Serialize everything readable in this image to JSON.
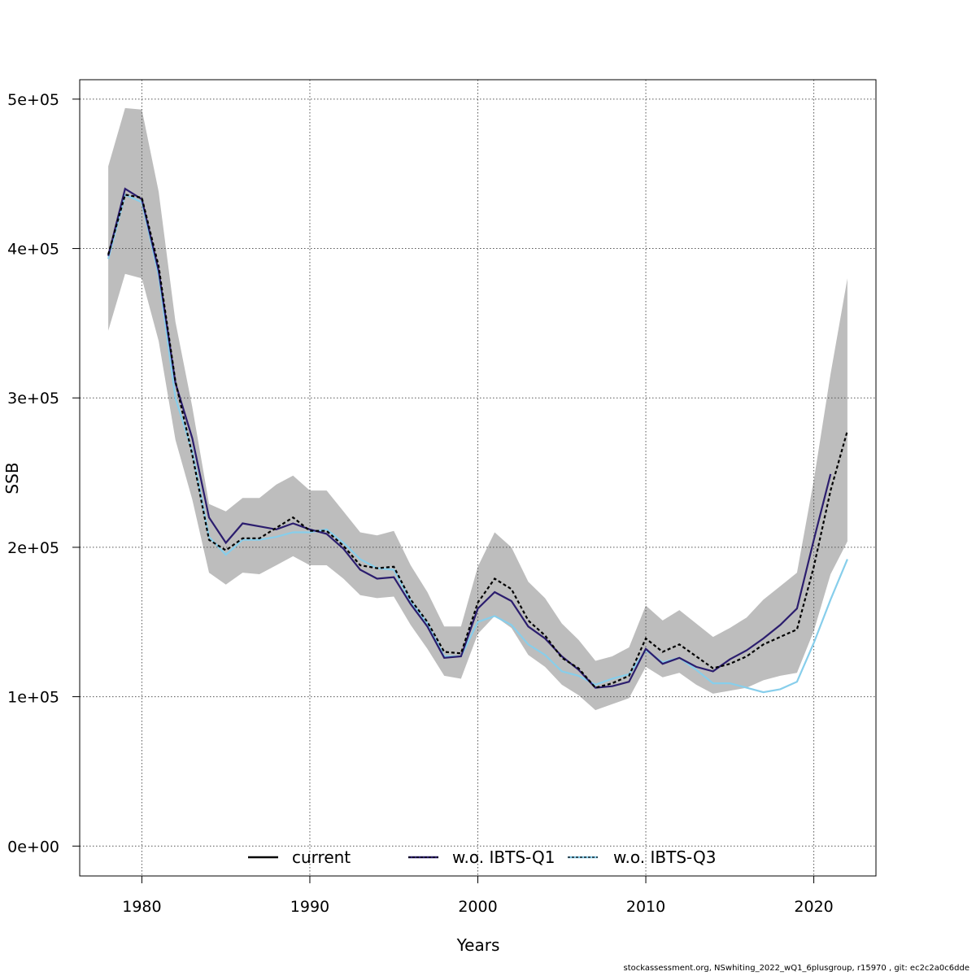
{
  "chart_data": {
    "type": "line",
    "title": "",
    "xlabel": "Years",
    "ylabel": "SSB",
    "xlim": [
      1976.3,
      2023.7
    ],
    "ylim": [
      -20000,
      513000
    ],
    "x_ticks": [
      1980,
      1990,
      2000,
      2010,
      2020
    ],
    "x_tick_labels": [
      "1980",
      "1990",
      "2000",
      "2010",
      "2020"
    ],
    "y_ticks": [
      0,
      100000,
      200000,
      300000,
      400000,
      500000
    ],
    "y_tick_labels": [
      "0e+00",
      "1e+05",
      "2e+05",
      "3e+05",
      "4e+05",
      "5e+05"
    ],
    "grid": true,
    "legend_position": "bottom",
    "confidence_band": {
      "x": [
        1978,
        1979,
        1980,
        1981,
        1982,
        1983,
        1984,
        1985,
        1986,
        1987,
        1988,
        1989,
        1990,
        1991,
        1992,
        1993,
        1994,
        1995,
        1996,
        1997,
        1998,
        1999,
        2000,
        2001,
        2002,
        2003,
        2004,
        2005,
        2006,
        2007,
        2008,
        2009,
        2010,
        2011,
        2012,
        2013,
        2014,
        2015,
        2016,
        2017,
        2018,
        2019,
        2020,
        2021,
        2022
      ],
      "lower": [
        345000,
        383000,
        380000,
        338000,
        272000,
        232000,
        183000,
        175000,
        183000,
        182000,
        188000,
        194000,
        188000,
        188000,
        179000,
        168000,
        166000,
        167000,
        148000,
        132000,
        114000,
        112000,
        142000,
        154000,
        146000,
        128000,
        120000,
        108000,
        101000,
        91000,
        95000,
        99000,
        120000,
        113000,
        116000,
        108000,
        102000,
        104000,
        106000,
        111000,
        114000,
        116000,
        144000,
        182000,
        204000
      ],
      "upper": [
        455000,
        494000,
        493000,
        438000,
        351000,
        294000,
        229000,
        224000,
        233000,
        233000,
        242000,
        248000,
        238000,
        238000,
        224000,
        210000,
        208000,
        211000,
        188000,
        170000,
        147000,
        147000,
        187000,
        210000,
        200000,
        177000,
        166000,
        149000,
        138000,
        124000,
        127000,
        133000,
        161000,
        151000,
        158000,
        149000,
        140000,
        146000,
        153000,
        165000,
        174000,
        183000,
        245000,
        316000,
        380000
      ]
    },
    "series": [
      {
        "name": "current",
        "color": "#000000",
        "x": [
          1978,
          1979,
          1980,
          1981,
          1982,
          1983,
          1984,
          1985,
          1986,
          1987,
          1988,
          1989,
          1990,
          1991,
          1992,
          1993,
          1994,
          1995,
          1996,
          1997,
          1998,
          1999,
          2000,
          2001,
          2002,
          2003,
          2004,
          2005,
          2006,
          2007,
          2008,
          2009,
          2010,
          2011,
          2012,
          2013,
          2014,
          2015,
          2016,
          2017,
          2018,
          2019,
          2020,
          2021,
          2022
        ],
        "values": [
          396000,
          436000,
          434000,
          388000,
          311000,
          262000,
          205000,
          198000,
          206000,
          206000,
          213000,
          220000,
          211000,
          211000,
          201000,
          188000,
          186000,
          187000,
          165000,
          150000,
          130000,
          129000,
          163000,
          179000,
          172000,
          151000,
          141000,
          126000,
          119000,
          106000,
          109000,
          114000,
          139000,
          130000,
          135000,
          127000,
          119000,
          122000,
          127000,
          135000,
          140000,
          145000,
          187000,
          238000,
          278000
        ]
      },
      {
        "name": "w.o. IBTS-Q1",
        "color": "#2b1d6e",
        "x": [
          1978,
          1979,
          1980,
          1981,
          1982,
          1983,
          1984,
          1985,
          1986,
          1987,
          1988,
          1989,
          1990,
          1991,
          1992,
          1993,
          1994,
          1995,
          1996,
          1997,
          1998,
          1999,
          2000,
          2001,
          2002,
          2003,
          2004,
          2005,
          2006,
          2007,
          2008,
          2009,
          2010,
          2011,
          2012,
          2013,
          2014,
          2015,
          2016,
          2017,
          2018,
          2019,
          2020,
          2021
        ],
        "values": [
          395000,
          440000,
          433000,
          385000,
          310000,
          273000,
          220000,
          203000,
          216000,
          214000,
          212000,
          216000,
          212000,
          209000,
          199000,
          185000,
          179000,
          180000,
          162000,
          147000,
          126000,
          127000,
          159000,
          170000,
          164000,
          147000,
          139000,
          127000,
          118000,
          106000,
          107000,
          110000,
          132000,
          122000,
          126000,
          120000,
          117000,
          125000,
          131000,
          139000,
          148000,
          159000,
          205000,
          249000
        ]
      },
      {
        "name": "w.o. IBTS-Q3",
        "color": "#87ceeb",
        "x": [
          1978,
          1979,
          1980,
          1981,
          1982,
          1983,
          1984,
          1985,
          1986,
          1987,
          1988,
          1989,
          1990,
          1991,
          1992,
          1993,
          1994,
          1995,
          1996,
          1997,
          1998,
          1999,
          2000,
          2001,
          2002,
          2003,
          2004,
          2005,
          2006,
          2007,
          2008,
          2009,
          2010,
          2011,
          2012,
          2013,
          2014,
          2015,
          2016,
          2017,
          2018,
          2019,
          2020,
          2021,
          2022
        ],
        "values": [
          393000,
          436000,
          431000,
          382000,
          300000,
          264000,
          207000,
          195000,
          205000,
          205000,
          207000,
          210000,
          210000,
          212000,
          203000,
          192000,
          186000,
          185000,
          164000,
          149000,
          127000,
          127000,
          150000,
          154000,
          148000,
          135000,
          128000,
          117000,
          114000,
          108000,
          112000,
          115000,
          131000,
          123000,
          126000,
          118000,
          109000,
          109000,
          106000,
          103000,
          105000,
          110000,
          136000,
          165000,
          192000
        ]
      }
    ]
  },
  "footer_note": "stockassessment.org, NSwhiting_2022_wQ1_6plusgroup, r15970 , git: ec2c2a0c6dde"
}
